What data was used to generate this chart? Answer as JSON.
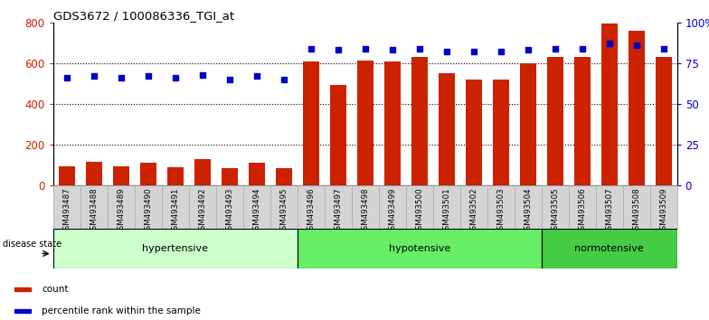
{
  "title": "GDS3672 / 100086336_TGI_at",
  "categories": [
    "GSM493487",
    "GSM493488",
    "GSM493489",
    "GSM493490",
    "GSM493491",
    "GSM493492",
    "GSM493493",
    "GSM493494",
    "GSM493495",
    "GSM493496",
    "GSM493497",
    "GSM493498",
    "GSM493499",
    "GSM493500",
    "GSM493501",
    "GSM493502",
    "GSM493503",
    "GSM493504",
    "GSM493505",
    "GSM493506",
    "GSM493507",
    "GSM493508",
    "GSM493509"
  ],
  "bar_values": [
    95,
    115,
    95,
    110,
    90,
    130,
    85,
    110,
    85,
    610,
    495,
    615,
    610,
    630,
    550,
    520,
    520,
    600,
    630,
    630,
    795,
    760,
    630
  ],
  "percentile_values": [
    66,
    67,
    66,
    67,
    66,
    68,
    65,
    67,
    65,
    84,
    83,
    84,
    83,
    84,
    82,
    82,
    82,
    83,
    84,
    84,
    87,
    86,
    84
  ],
  "groups": [
    {
      "label": "hypertensive",
      "start": 0,
      "end": 9,
      "color": "#ccffcc"
    },
    {
      "label": "hypotensive",
      "start": 9,
      "end": 18,
      "color": "#66ee66"
    },
    {
      "label": "normotensive",
      "start": 18,
      "end": 23,
      "color": "#44cc44"
    }
  ],
  "bar_color": "#cc2200",
  "dot_color": "#0000cc",
  "ylim_left": [
    0,
    800
  ],
  "ylim_right": [
    0,
    100
  ],
  "yticks_left": [
    0,
    200,
    400,
    600,
    800
  ],
  "yticks_right": [
    0,
    25,
    50,
    75,
    100
  ],
  "ytick_labels_right": [
    "0",
    "25",
    "50",
    "75",
    "100%"
  ],
  "disease_state_label": "disease state",
  "legend_count_label": "count",
  "legend_percentile_label": "percentile rank within the sample",
  "grid_dotted_at": [
    200,
    400,
    600
  ],
  "cell_color": "#d4d4d4",
  "cell_edge_color": "#aaaaaa"
}
